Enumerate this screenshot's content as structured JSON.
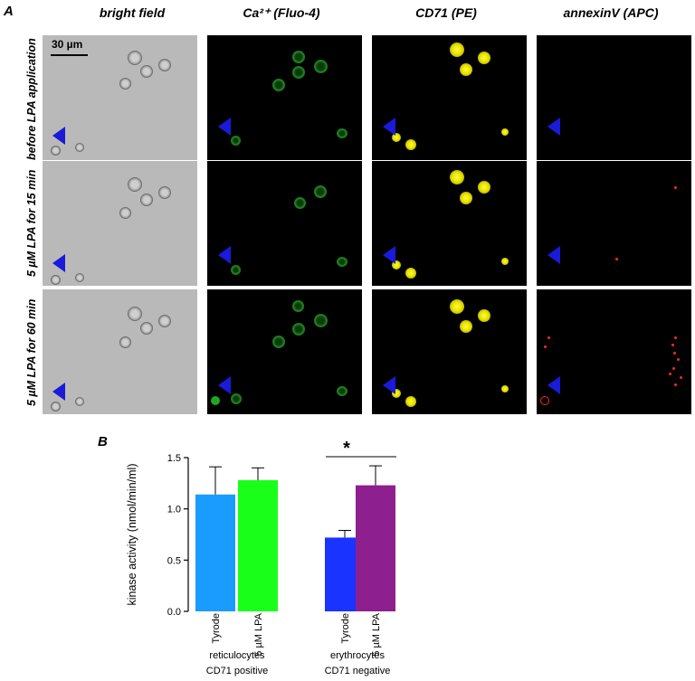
{
  "panel_a": {
    "letter": "A",
    "columns": [
      "bright field",
      "Ca²⁺ (Fluo-4)",
      "CD71 (PE)",
      "annexinV (APC)"
    ],
    "rows": [
      "before LPA application",
      "5 µM LPA for 15 min",
      "5 µM LPA for 60 min"
    ],
    "scale_bar": "30 µm"
  },
  "panel_b": {
    "letter": "B"
  },
  "colors": {
    "tyrode_reticulocyte": "#1a9cff",
    "lpa_reticulocyte": "#1aff1a",
    "tyrode_erythrocyte": "#1a33ff",
    "lpa_erythrocyte": "#8e1f8e",
    "arrowhead": "#1a1ad9",
    "calcium": "#1e7d1e",
    "cd71": "#f0ec00",
    "annexin": "#ff2a1a"
  },
  "chart_data": {
    "type": "bar",
    "ylabel": "kinase activity (nmol/min/ml)",
    "ylim": [
      0,
      1.5
    ],
    "yticks": [
      "0.0",
      "0.5",
      "1.0",
      "1.5"
    ],
    "categories": [
      "Tyrode",
      "5 µM LPA",
      "Tyrode",
      "5 µM LPA"
    ],
    "groups": [
      {
        "label_line1": "reticulocytes",
        "label_line2": "CD71 positive"
      },
      {
        "label_line1": "erythrocytes",
        "label_line2": "CD71 negative"
      }
    ],
    "values": [
      1.14,
      1.28,
      0.72,
      1.23
    ],
    "errors": [
      0.27,
      0.12,
      0.07,
      0.19
    ],
    "significance": "*"
  }
}
